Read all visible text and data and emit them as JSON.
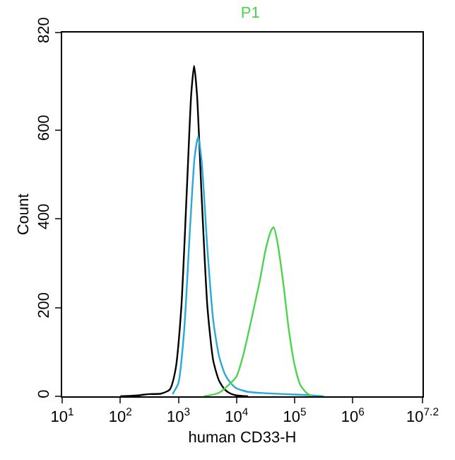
{
  "chart_data": {
    "type": "line",
    "title": "P1",
    "xlabel": "human CD33-H",
    "ylabel": "Count",
    "log": "x",
    "marker": "none",
    "line_style": "solid",
    "xlim": [
      10,
      15848932
    ],
    "ylim": [
      0,
      820
    ],
    "xticks": [
      {
        "value": 10,
        "label": "10$^{1}$"
      },
      {
        "value": 100,
        "label": "10$^{2}$"
      },
      {
        "value": 1000,
        "label": "10$^{3}$"
      },
      {
        "value": 10000,
        "label": "10$^{4}$"
      },
      {
        "value": 100000,
        "label": "10$^{5}$"
      },
      {
        "value": 1000000,
        "label": "10$^{6}$"
      },
      {
        "value": 15848932,
        "label": "10$^{7.2}$"
      }
    ],
    "yticks": [
      0,
      200,
      400,
      600,
      820
    ],
    "series": [
      {
        "color": "#000000",
        "x": [
          100,
          200,
          316,
          501,
          708,
          891,
          1122,
          1413,
          1660,
          1862,
          2089,
          2512,
          3162,
          3981,
          5012,
          6310,
          7943,
          10000,
          15849
        ],
        "values": [
          0,
          2,
          5,
          6,
          15,
          60,
          200,
          480,
          680,
          745,
          680,
          450,
          200,
          80,
          35,
          15,
          6,
          2,
          0
        ]
      },
      {
        "color": "#2aa8d8",
        "x": [
          794,
          1000,
          1259,
          1585,
          1905,
          2188,
          2512,
          3162,
          3981,
          5012,
          6310,
          7943,
          10000,
          15849,
          31623,
          100000,
          199526,
          316228
        ],
        "values": [
          5,
          30,
          150,
          380,
          540,
          585,
          530,
          330,
          170,
          90,
          50,
          30,
          18,
          10,
          7,
          4,
          2,
          0
        ]
      },
      {
        "color": "#4fd34f",
        "x": [
          2754,
          5012,
          7943,
          10000,
          12589,
          15849,
          19953,
          25119,
          31623,
          39811,
          43652,
          50119,
          63096,
          79433,
          100000,
          125893,
          158489,
          199526
        ],
        "values": [
          0,
          8,
          30,
          45,
          85,
          140,
          200,
          260,
          330,
          375,
          381,
          350,
          260,
          150,
          70,
          25,
          8,
          0
        ]
      }
    ]
  }
}
